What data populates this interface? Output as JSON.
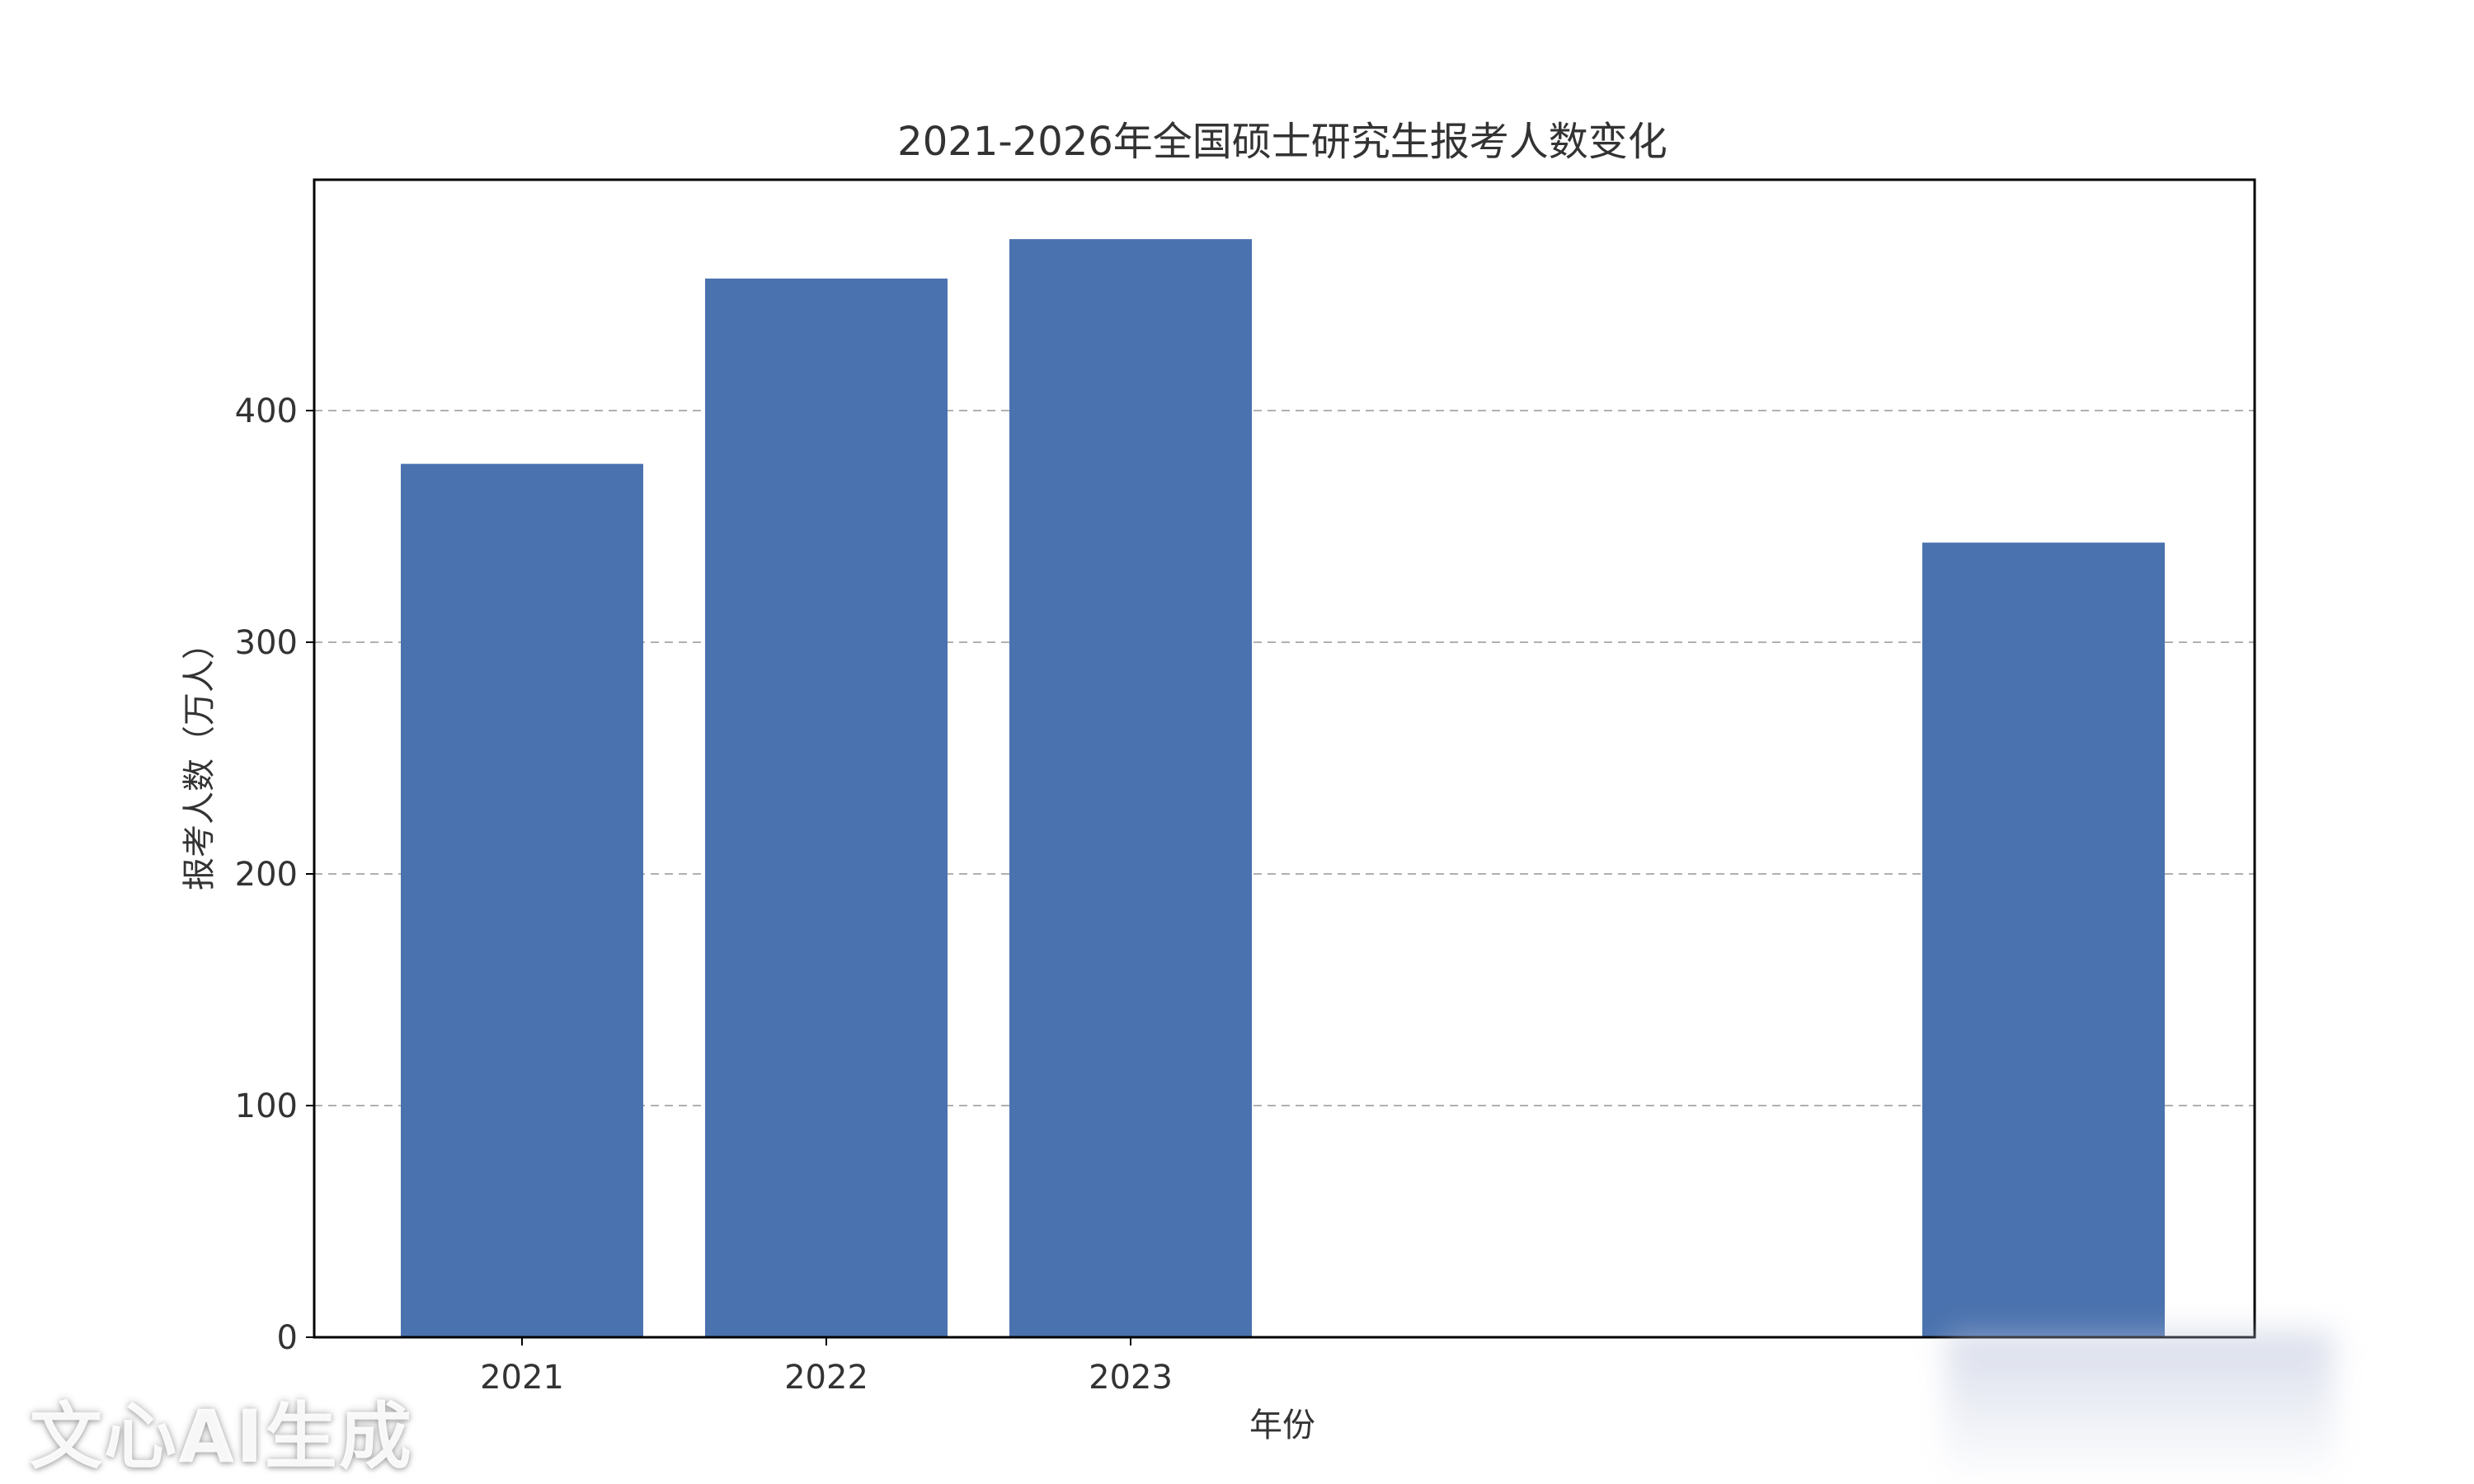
{
  "chart_data": {
    "type": "bar",
    "title": "2021-2026年全国硕士研究生报考人数变化",
    "xlabel": "年份",
    "ylabel": "报考人数（万人）",
    "categories": [
      "2021",
      "2022",
      "2023",
      "",
      "",
      ""
    ],
    "values": [
      377,
      457,
      474,
      null,
      null,
      343
    ],
    "ylim": [
      0,
      500
    ],
    "yticks": [
      0,
      100,
      200,
      300,
      400
    ],
    "grid": "y-dashed",
    "bar_color": "#4a72ae",
    "grid_color": "#b0b0b0"
  },
  "watermark": {
    "text": "文心AI生成"
  }
}
